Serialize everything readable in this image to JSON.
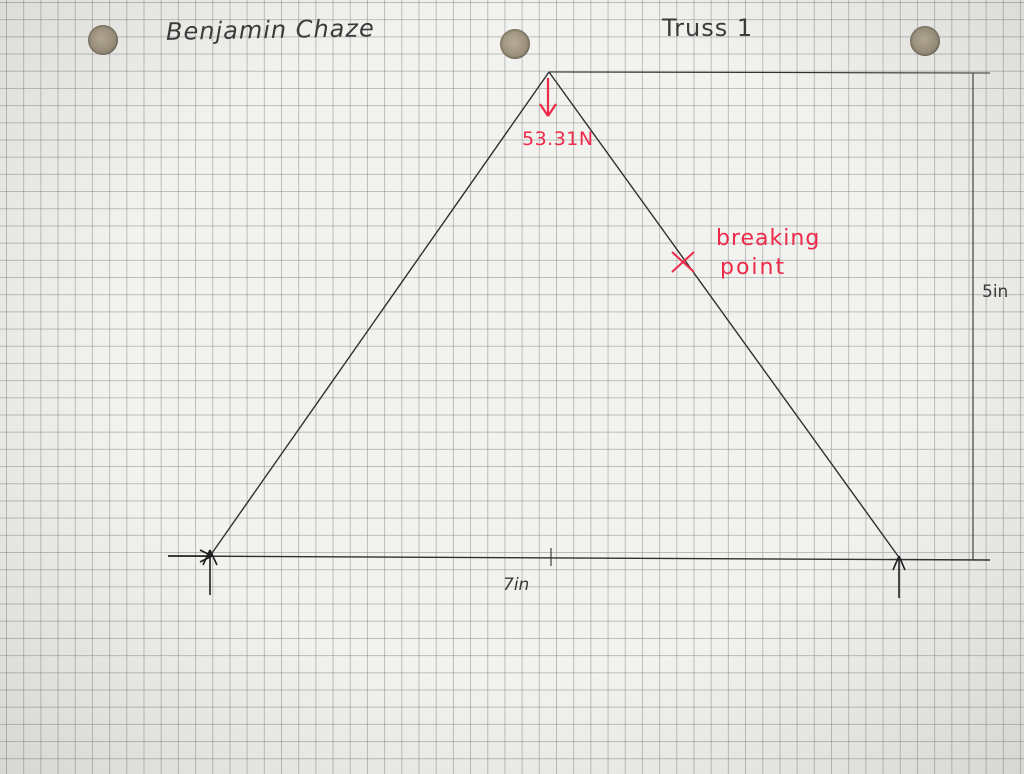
{
  "header": {
    "name": "Benjamin Chaze",
    "title": "Truss 1"
  },
  "dimensions": {
    "height": "5in",
    "width": "7in"
  },
  "load": {
    "label": "53.31N"
  },
  "failure": {
    "line1": "breaking",
    "line2": "point"
  },
  "colors": {
    "paper": "#f2f2ee",
    "grid": "#8a8f94",
    "pencil": "#2f2f2f",
    "ink_red": "#ee2a4a"
  }
}
